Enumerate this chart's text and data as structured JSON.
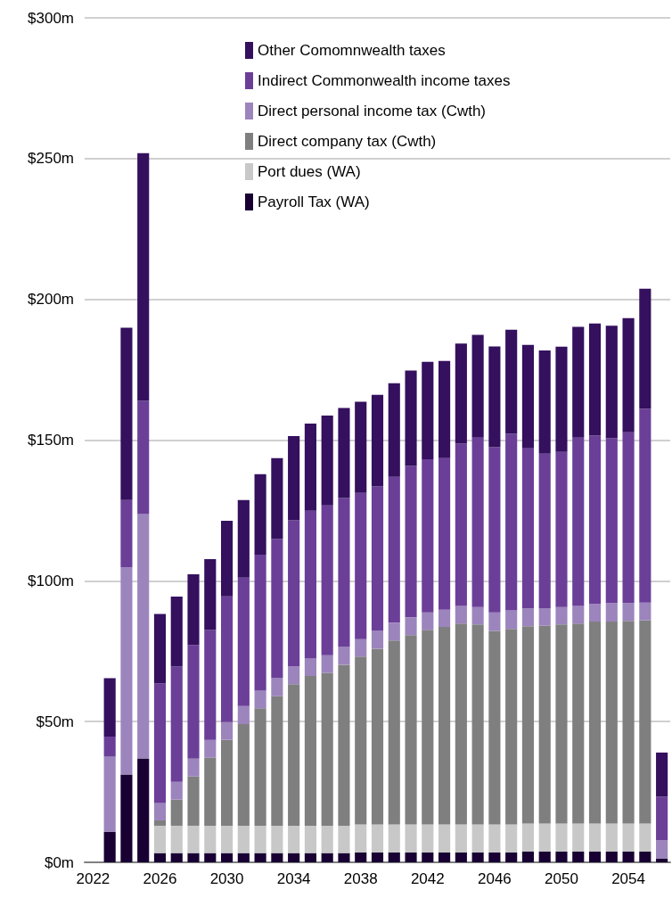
{
  "chart_data": {
    "type": "bar",
    "stacked": true,
    "categories": [
      "2022",
      null,
      null,
      null,
      "2026",
      null,
      null,
      null,
      "2030",
      null,
      null,
      null,
      "2034",
      null,
      null,
      null,
      "2038",
      null,
      null,
      null,
      "2042",
      null,
      null,
      null,
      "2046",
      null,
      null,
      null,
      "2050",
      null,
      null,
      null,
      "2054",
      null,
      null
    ],
    "series": [
      {
        "name": "Payroll Tax (WA)",
        "color": "#180033",
        "values": [
          null,
          10.9,
          31.2,
          36.9,
          3.3,
          3.3,
          3.3,
          3.3,
          3.3,
          3.3,
          3.3,
          3.3,
          3.3,
          3.3,
          3.3,
          3.3,
          3.5,
          3.5,
          3.5,
          3.5,
          3.5,
          3.5,
          3.5,
          3.5,
          3.5,
          3.5,
          3.8,
          3.8,
          3.8,
          3.8,
          3.8,
          3.8,
          3.8,
          3.8,
          1.4
        ]
      },
      {
        "name": "Port dues (WA)",
        "color": "#c8c8c8",
        "values": [
          null,
          null,
          null,
          null,
          9.7,
          9.7,
          9.7,
          9.7,
          9.7,
          9.7,
          9.7,
          9.7,
          9.7,
          9.7,
          9.7,
          9.7,
          10.0,
          10.0,
          10.0,
          10.0,
          10.0,
          10.0,
          10.0,
          10.0,
          10.0,
          10.0,
          10.0,
          10.0,
          10.0,
          10.0,
          10.0,
          10.0,
          10.0,
          10.0,
          null
        ]
      },
      {
        "name": "Direct company tax (Cwth)",
        "color": "#7f7f7f",
        "values": [
          null,
          null,
          null,
          null,
          1.9,
          9.3,
          17.5,
          24.2,
          30.5,
          36.1,
          41.7,
          46.0,
          50.3,
          53.2,
          54.3,
          57.2,
          59.6,
          62.4,
          65.3,
          67.2,
          69.1,
          70.1,
          71.3,
          71.0,
          68.7,
          69.4,
          70.1,
          70.3,
          70.7,
          71.0,
          71.7,
          71.7,
          72.0,
          72.2,
          null
        ]
      },
      {
        "name": "Direct personal income tax (Cwth)",
        "color": "#9c84bd",
        "values": [
          null,
          26.6,
          73.6,
          86.8,
          6.2,
          6.3,
          6.3,
          6.3,
          6.3,
          6.4,
          6.3,
          6.4,
          6.2,
          6.3,
          6.3,
          6.3,
          6.2,
          6.3,
          6.3,
          6.3,
          6.2,
          6.1,
          6.3,
          6.2,
          6.6,
          6.6,
          6.3,
          6.2,
          6.2,
          6.3,
          6.3,
          6.6,
          6.3,
          6.3,
          6.4
        ]
      },
      {
        "name": "Indirect Commonwealth income taxes",
        "color": "#6b3f98",
        "values": [
          null,
          7.2,
          23.9,
          40.2,
          42.4,
          40.9,
          40.4,
          39.0,
          44.7,
          45.6,
          48.3,
          49.4,
          52.0,
          52.4,
          53.2,
          52.9,
          51.9,
          51.3,
          51.8,
          53.8,
          54.4,
          53.9,
          57.6,
          60.2,
          58.7,
          62.8,
          56.9,
          54.9,
          55.1,
          59.8,
          59.8,
          58.5,
          60.7,
          68.9,
          15.5
        ]
      },
      {
        "name": "Other Comomnwealth taxes",
        "color": "#34105e",
        "values": [
          null,
          20.7,
          61.2,
          88.0,
          24.7,
          24.9,
          25.1,
          25.2,
          26.8,
          27.6,
          28.6,
          28.8,
          29.9,
          31.0,
          31.9,
          32.0,
          32.4,
          32.6,
          33.3,
          33.9,
          34.6,
          34.5,
          35.6,
          36.5,
          35.8,
          36.9,
          36.7,
          36.6,
          37.4,
          39.3,
          39.8,
          40.0,
          40.5,
          42.6,
          15.7
        ]
      }
    ],
    "ylim": [
      0,
      300
    ],
    "yticks": [
      {
        "value": 0,
        "label": "$0m"
      },
      {
        "value": 50,
        "label": "$50m"
      },
      {
        "value": 100,
        "label": "$100m"
      },
      {
        "value": 150,
        "label": "$150m"
      },
      {
        "value": 200,
        "label": "$200m"
      },
      {
        "value": 250,
        "label": "$250m"
      },
      {
        "value": 300,
        "label": "$300m"
      }
    ],
    "grid": "y",
    "legend": "top right"
  }
}
